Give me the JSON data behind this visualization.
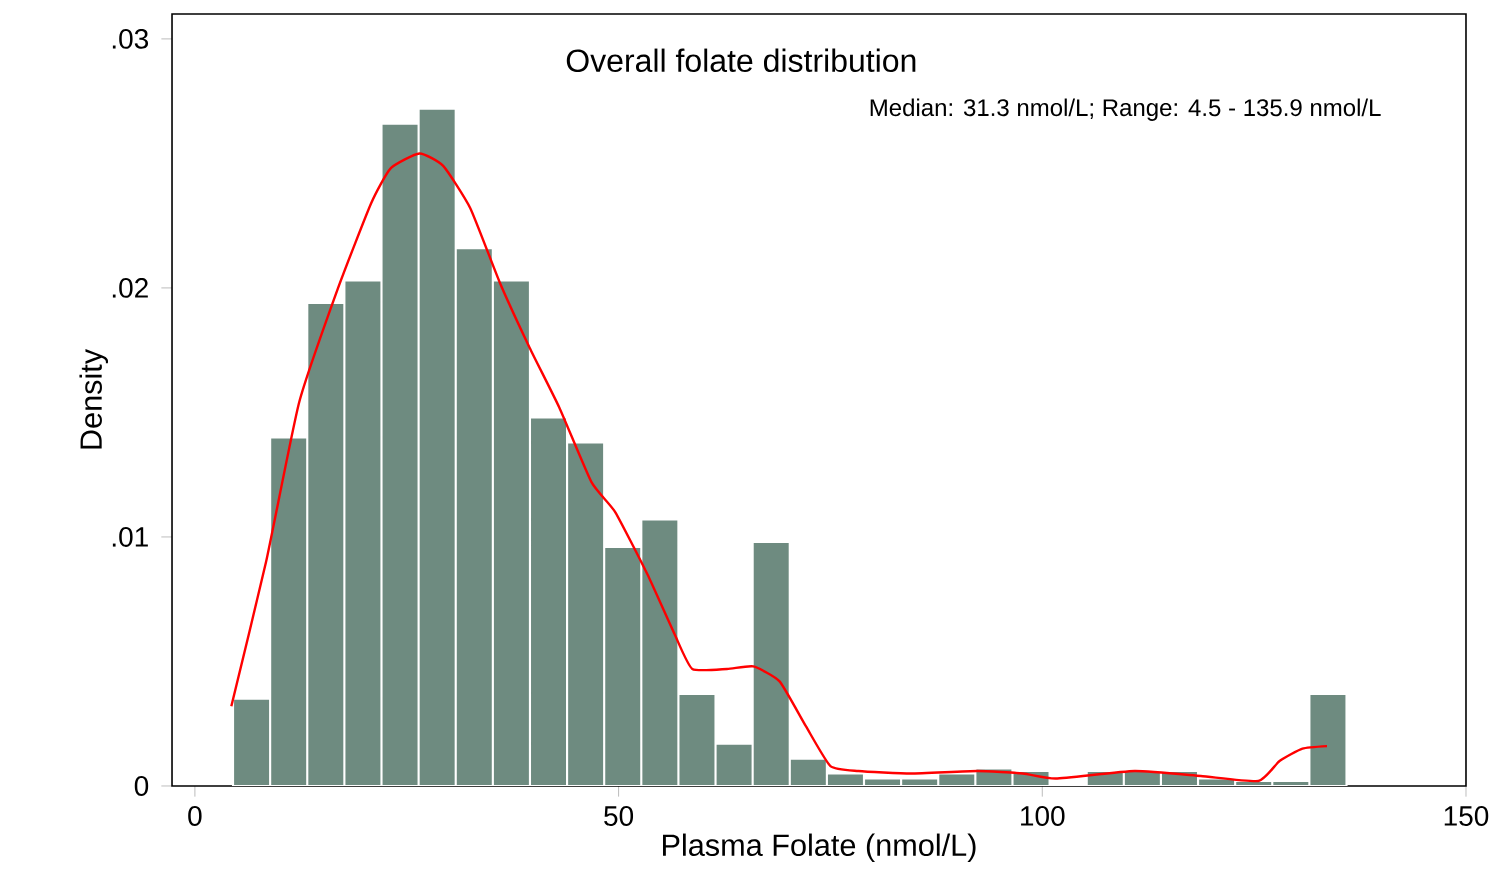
{
  "chart_data": {
    "type": "histogram",
    "title": "Overall folate distribution",
    "xlabel": "Plasma Folate (nmol/L)",
    "ylabel": "Density",
    "annotations": [
      "Median: 31.3 nmol/L; Range: 4.5 - 135.9 nmol/L"
    ],
    "series": [
      {
        "type": "histogram",
        "color": "#6e8b80",
        "bins": [
          4.5,
          8.88,
          13.26,
          17.64,
          22.02,
          26.4,
          30.78,
          35.16,
          39.54,
          43.92,
          48.3,
          52.68,
          57.06,
          61.44,
          65.82,
          70.2,
          74.58,
          78.96,
          83.34,
          87.72,
          92.1,
          96.48,
          100.86,
          105.24,
          109.62,
          114.0,
          118.38,
          122.76,
          127.14,
          131.52,
          135.9
        ],
        "values": [
          0.0035,
          0.014,
          0.0194,
          0.0203,
          0.0266,
          0.0272,
          0.0216,
          0.0203,
          0.0148,
          0.0138,
          0.0096,
          0.0107,
          0.0037,
          0.0017,
          0.0098,
          0.0011,
          0.0005,
          0.0003,
          0.0003,
          0.0005,
          0.0007,
          0.0006,
          0,
          0.0006,
          0.0006,
          0.0006,
          0.0003,
          0.0002,
          0.0002,
          0.0037
        ]
      },
      {
        "type": "line",
        "color": "#ff0000",
        "x": [
          4.3,
          8.4,
          12.3,
          16.9,
          20.8,
          23.1,
          26.5,
          29.3,
          32.5,
          36.0,
          39.5,
          43.0,
          46.8,
          49.6,
          53.4,
          56.6,
          58.7,
          62.8,
          65.9,
          69.0,
          72.1,
          75.0,
          78.3,
          84.5,
          92.3,
          97.7,
          101.6,
          110.9,
          118.7,
          125.5,
          128.0,
          130.7,
          133.6
        ],
        "values": [
          0.0032,
          0.009,
          0.0154,
          0.02,
          0.0234,
          0.0248,
          0.0254,
          0.0249,
          0.0232,
          0.0202,
          0.0176,
          0.0152,
          0.0122,
          0.011,
          0.0085,
          0.0061,
          0.0047,
          0.0047,
          0.0048,
          0.0042,
          0.0024,
          0.0008,
          0.0006,
          0.0005,
          0.0006,
          0.0005,
          0.0003,
          0.0006,
          0.0004,
          0.0002,
          0.001,
          0.0015,
          0.0016
        ]
      }
    ],
    "xlim": [
      -2.7,
      150
    ],
    "ylim": [
      0,
      0.031
    ],
    "xticks": [
      0,
      50,
      100,
      150
    ],
    "yticks": [
      0,
      {
        "value": 0.01,
        "label": ".01"
      },
      {
        "value": 0.02,
        "label": ".02"
      },
      {
        "value": 0.03,
        "label": ".03"
      }
    ]
  }
}
